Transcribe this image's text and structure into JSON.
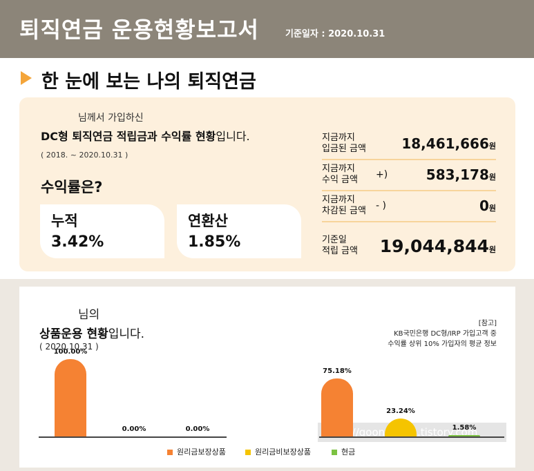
{
  "header": {
    "title": "퇴직연금 운용현황보고서",
    "date": "기준일자 : 2020.10.31"
  },
  "summary": {
    "section_title": "한 눈에 보는 나의 퇴직연금",
    "subtitle": "님께서 가입하신",
    "title_bold": "DC형 퇴직연금 적립금과 수익률 현황",
    "title_rest": "입니다.",
    "period": "( 2018.        ~ 2020.10.31 )",
    "rate_question": "수익률은?",
    "cards": [
      {
        "label": "누적",
        "value": "3.42%"
      },
      {
        "label": "연환산",
        "value": "1.85%"
      }
    ],
    "rows": [
      {
        "label1": "지금까지",
        "label2": "입금된 금액",
        "sign": "",
        "value": "18,461,666",
        "unit": "원"
      },
      {
        "label1": "지금까지",
        "label2": "수익 금액",
        "sign": "+)",
        "value": "583,178",
        "unit": "원"
      },
      {
        "label1": "지금까지",
        "label2": "차감된 금액",
        "sign": "- )",
        "value": "0",
        "unit": "원"
      },
      {
        "label1": "기준일",
        "label2": "적립 금액",
        "sign": "",
        "value": "19,044,844",
        "unit": "원"
      }
    ]
  },
  "products": {
    "subtitle": "님의",
    "title_bold": "상품운용 현황",
    "title_rest": "입니다.",
    "date": "( 2020.10.31 )",
    "reference": [
      "[참고]",
      "KB국민은행 DC형/IRP 가입고객 중",
      "수익률 상위 10% 가입자의 평균 정보"
    ],
    "legend": [
      {
        "label": "원리금보장상품",
        "color": "#f58233"
      },
      {
        "label": "원리금비보장상품",
        "color": "#f5c400"
      },
      {
        "label": "현금",
        "color": "#7cc242"
      }
    ]
  },
  "chart_data": [
    {
      "type": "bar",
      "categories": [
        "원리금보장상품",
        "원리금비보장상품",
        "현금"
      ],
      "values": [
        100.0,
        0.0,
        0.0
      ],
      "labels": [
        "100.00%",
        "0.00%",
        "0.00%"
      ],
      "colors": [
        "#f58233",
        "#f5c400",
        "#7cc242"
      ],
      "ylim": [
        0,
        100
      ]
    },
    {
      "type": "bar",
      "categories": [
        "원리금보장상품",
        "원리금비보장상품",
        "현금"
      ],
      "values": [
        75.18,
        23.24,
        1.58
      ],
      "labels": [
        "75.18%",
        "23.24%",
        "1.58%"
      ],
      "colors": [
        "#f58233",
        "#f5c400",
        "#7cc242"
      ],
      "ylim": [
        0,
        100
      ]
    }
  ],
  "watermark": "https://goonfms84.tistory.com"
}
